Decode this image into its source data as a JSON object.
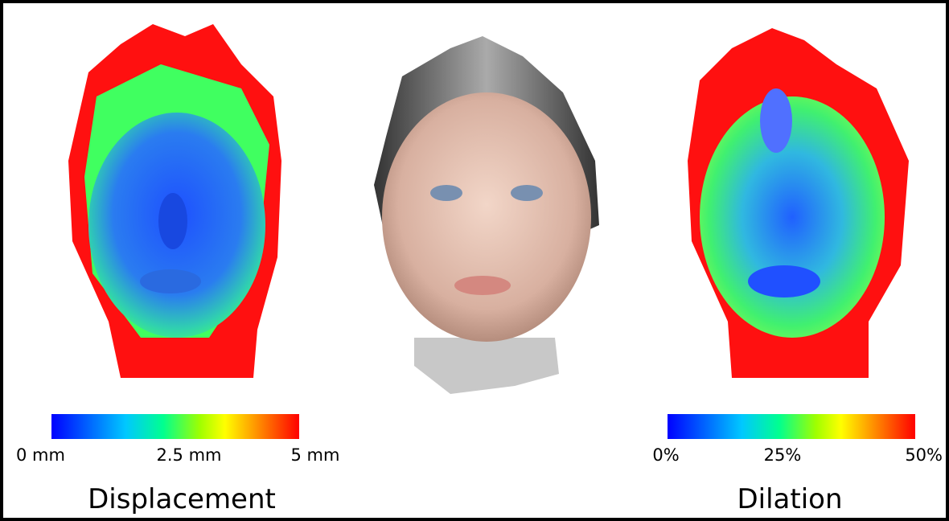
{
  "left_panel": {
    "colorbar_labels": [
      "0 mm",
      "2.5 mm",
      "5 mm"
    ],
    "title": "Displacement"
  },
  "right_panel": {
    "colorbar_labels": [
      "0%",
      "25%",
      "50%"
    ],
    "title": "Dilation"
  }
}
